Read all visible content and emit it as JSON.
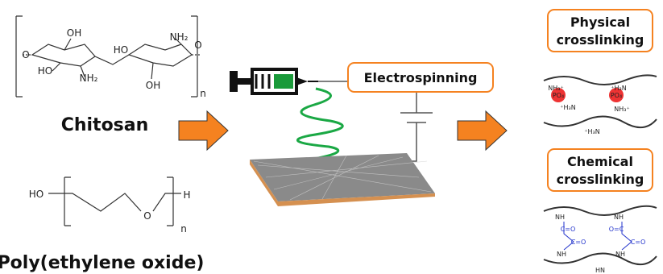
{
  "chitosan": {
    "name": "Chitosan",
    "labels": [
      "OH",
      "O",
      "HO",
      "NH₂",
      "HO",
      "O",
      "NH₂",
      "OH",
      "n"
    ]
  },
  "peo": {
    "name": "Poly(ethylene oxide)",
    "labels": [
      "HO",
      "O",
      "H",
      "n"
    ]
  },
  "process": {
    "label": "Electrospinning"
  },
  "physical": {
    "title": "Physical crosslinking",
    "labels": [
      "NH₃⁺",
      "⁺H₃N",
      "PO₄",
      "PO₄",
      "⁺H₃N",
      "NH₃⁺",
      "⁺H₃N"
    ]
  },
  "chemical": {
    "title": "Chemical crosslinking",
    "labels": [
      "NH",
      "NH",
      "C=O",
      "O=C",
      "C=O",
      "C=O",
      "NH",
      "NH",
      "HN"
    ]
  }
}
